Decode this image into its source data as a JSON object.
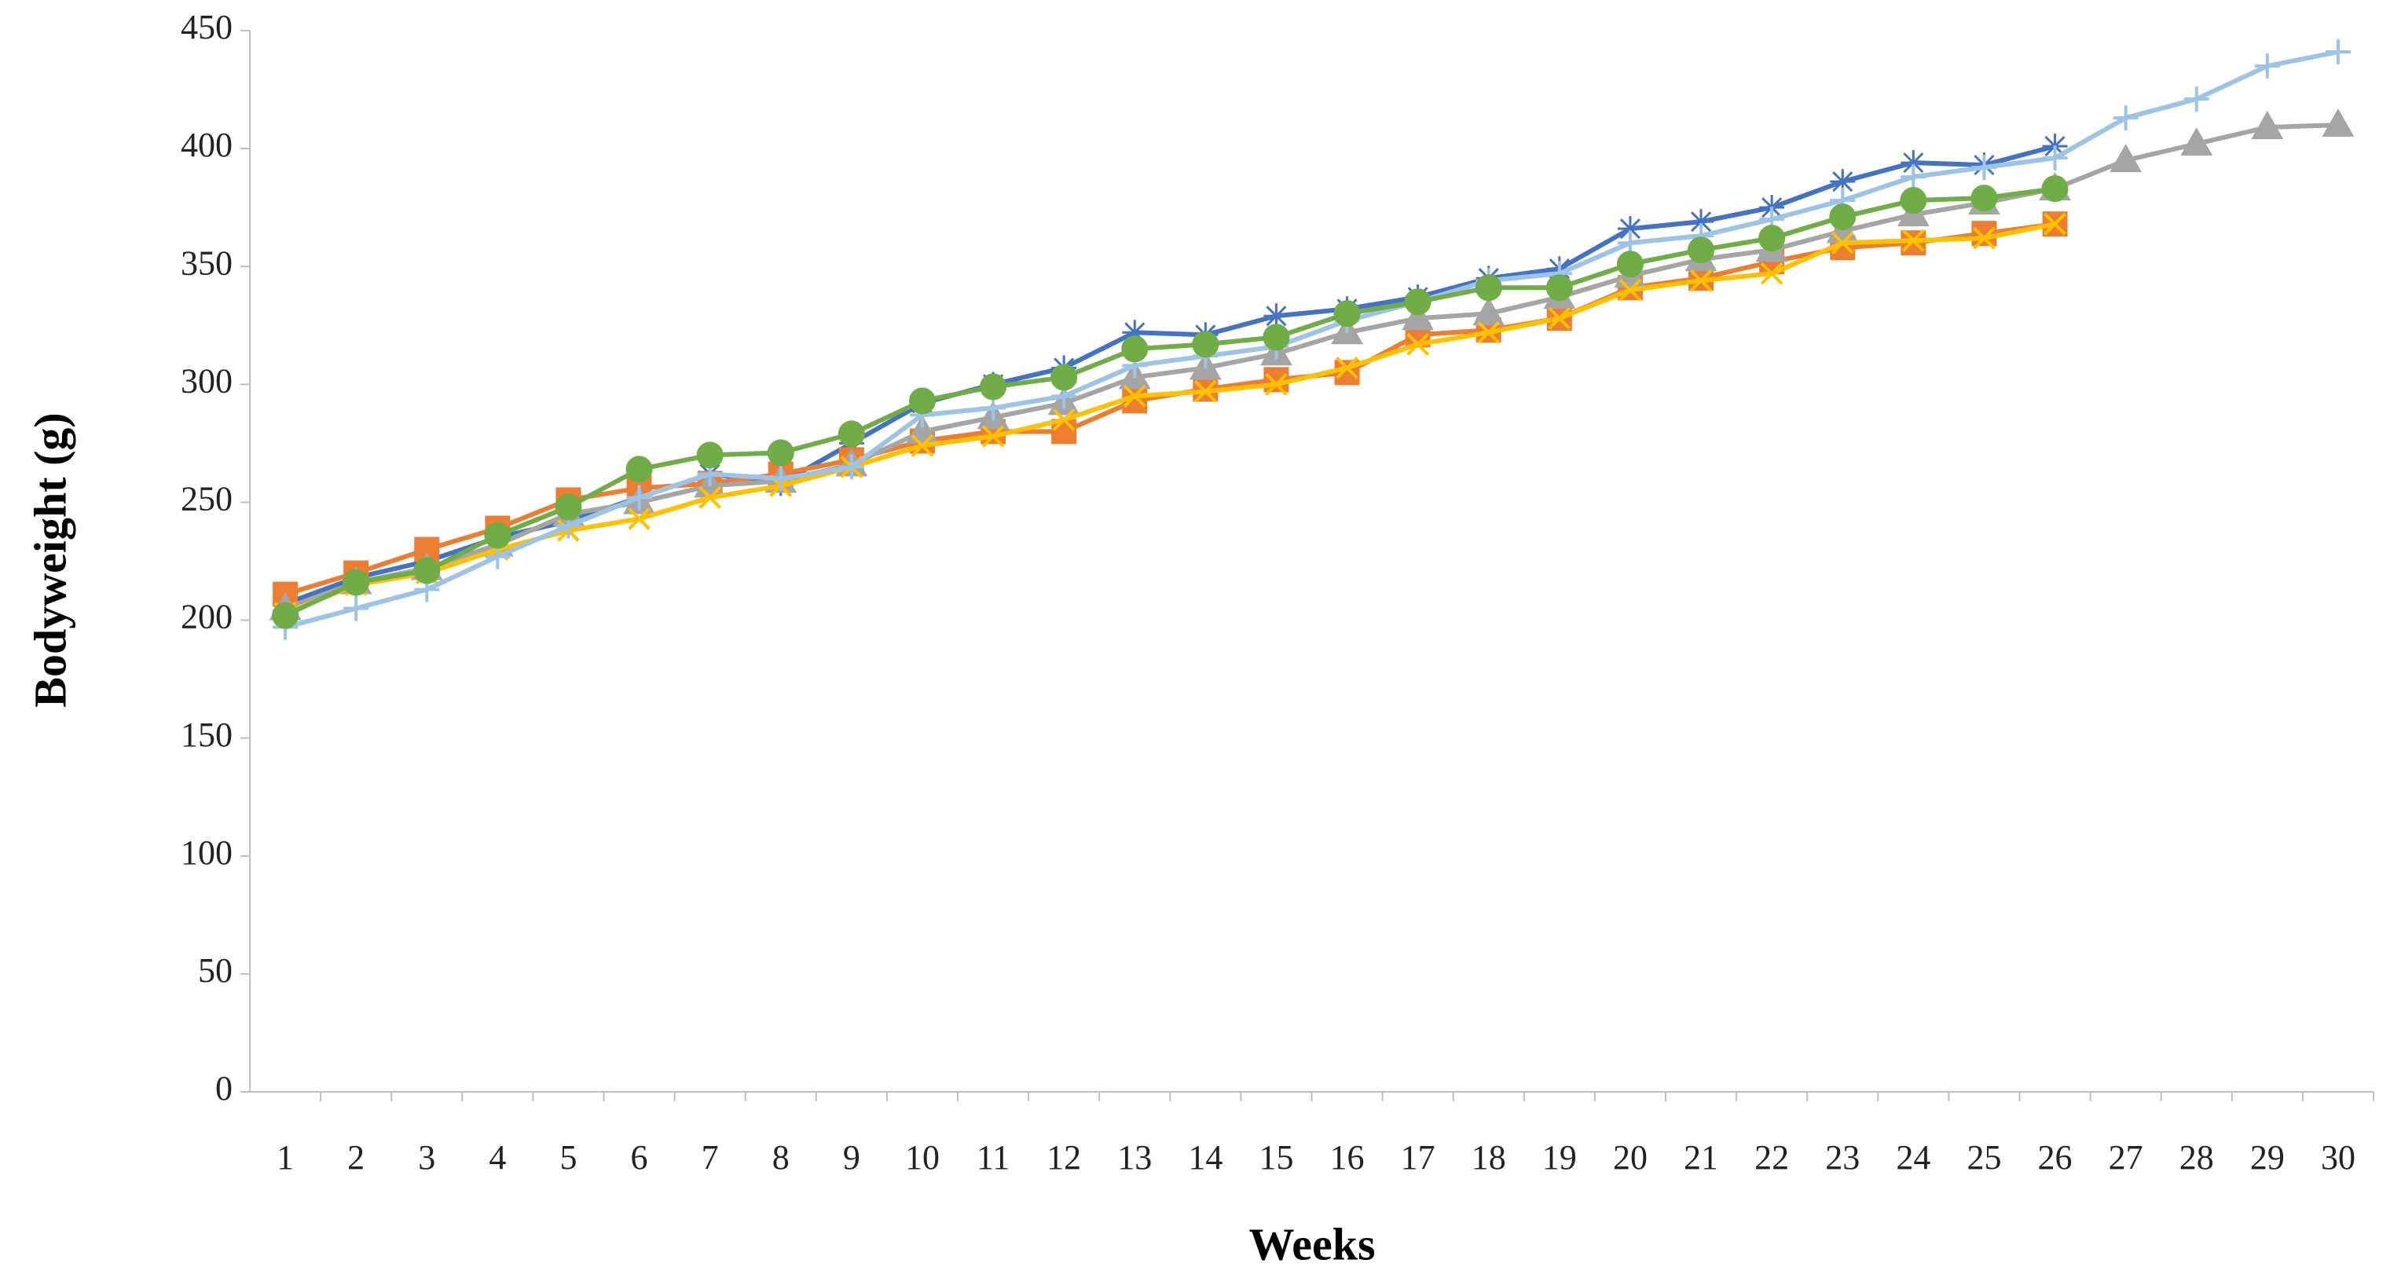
{
  "chart_data": {
    "type": "line",
    "x_label": "Weeks",
    "y_label": "Bodyweight (g)",
    "categories": [
      "1",
      "2",
      "3",
      "4",
      "5",
      "6",
      "7",
      "8",
      "9",
      "10",
      "11",
      "12",
      "13",
      "14",
      "15",
      "16",
      "17",
      "18",
      "19",
      "20",
      "21",
      "22",
      "23",
      "24",
      "25",
      "26",
      "27",
      "28",
      "29",
      "30"
    ],
    "ylim": [
      0,
      450
    ],
    "yticks": [
      0,
      50,
      100,
      150,
      200,
      250,
      300,
      350,
      400,
      450
    ],
    "grid": false,
    "series": [
      {
        "color": "#4472c4",
        "marker": "asterisk",
        "values": [
          207,
          218,
          225,
          235,
          242,
          252,
          262,
          258,
          275,
          292,
          300,
          307,
          322,
          321,
          329,
          332,
          337,
          345,
          349,
          366,
          369,
          375,
          386,
          394,
          393,
          401,
          null,
          null,
          null,
          null
        ]
      },
      {
        "color": "#ed7d31",
        "marker": "square",
        "values": [
          211,
          220,
          230,
          239,
          251,
          256,
          258,
          262,
          268,
          276,
          280,
          280,
          293,
          298,
          302,
          305,
          321,
          323,
          328,
          341,
          345,
          352,
          358,
          360,
          364,
          368,
          null,
          null,
          null,
          null
        ]
      },
      {
        "color": "#a5a5a5",
        "marker": "triangle",
        "values": [
          205,
          216,
          222,
          232,
          245,
          250,
          257,
          259,
          266,
          280,
          286,
          292,
          303,
          307,
          313,
          322,
          328,
          330,
          337,
          346,
          353,
          357,
          365,
          372,
          377,
          383,
          395,
          402,
          409,
          410
        ]
      },
      {
        "color": "#ffc000",
        "marker": "x",
        "values": [
          203,
          215,
          220,
          230,
          238,
          243,
          252,
          257,
          265,
          274,
          278,
          285,
          295,
          297,
          300,
          307,
          317,
          322,
          328,
          340,
          344,
          347,
          360,
          361,
          362,
          368,
          null,
          null,
          null,
          null
        ]
      },
      {
        "color": "#9dc3e6",
        "marker": "plus",
        "values": [
          197,
          205,
          213,
          227,
          240,
          252,
          262,
          260,
          265,
          287,
          290,
          295,
          308,
          312,
          316,
          327,
          335,
          344,
          347,
          360,
          363,
          370,
          378,
          388,
          392,
          396,
          413,
          421,
          435,
          441
        ]
      },
      {
        "color": "#70ad47",
        "marker": "circle",
        "values": [
          202,
          216,
          221,
          236,
          248,
          264,
          270,
          271,
          279,
          293,
          299,
          303,
          315,
          317,
          320,
          330,
          335,
          341,
          341,
          351,
          357,
          362,
          371,
          378,
          379,
          383,
          null,
          null,
          null,
          null
        ]
      }
    ]
  }
}
